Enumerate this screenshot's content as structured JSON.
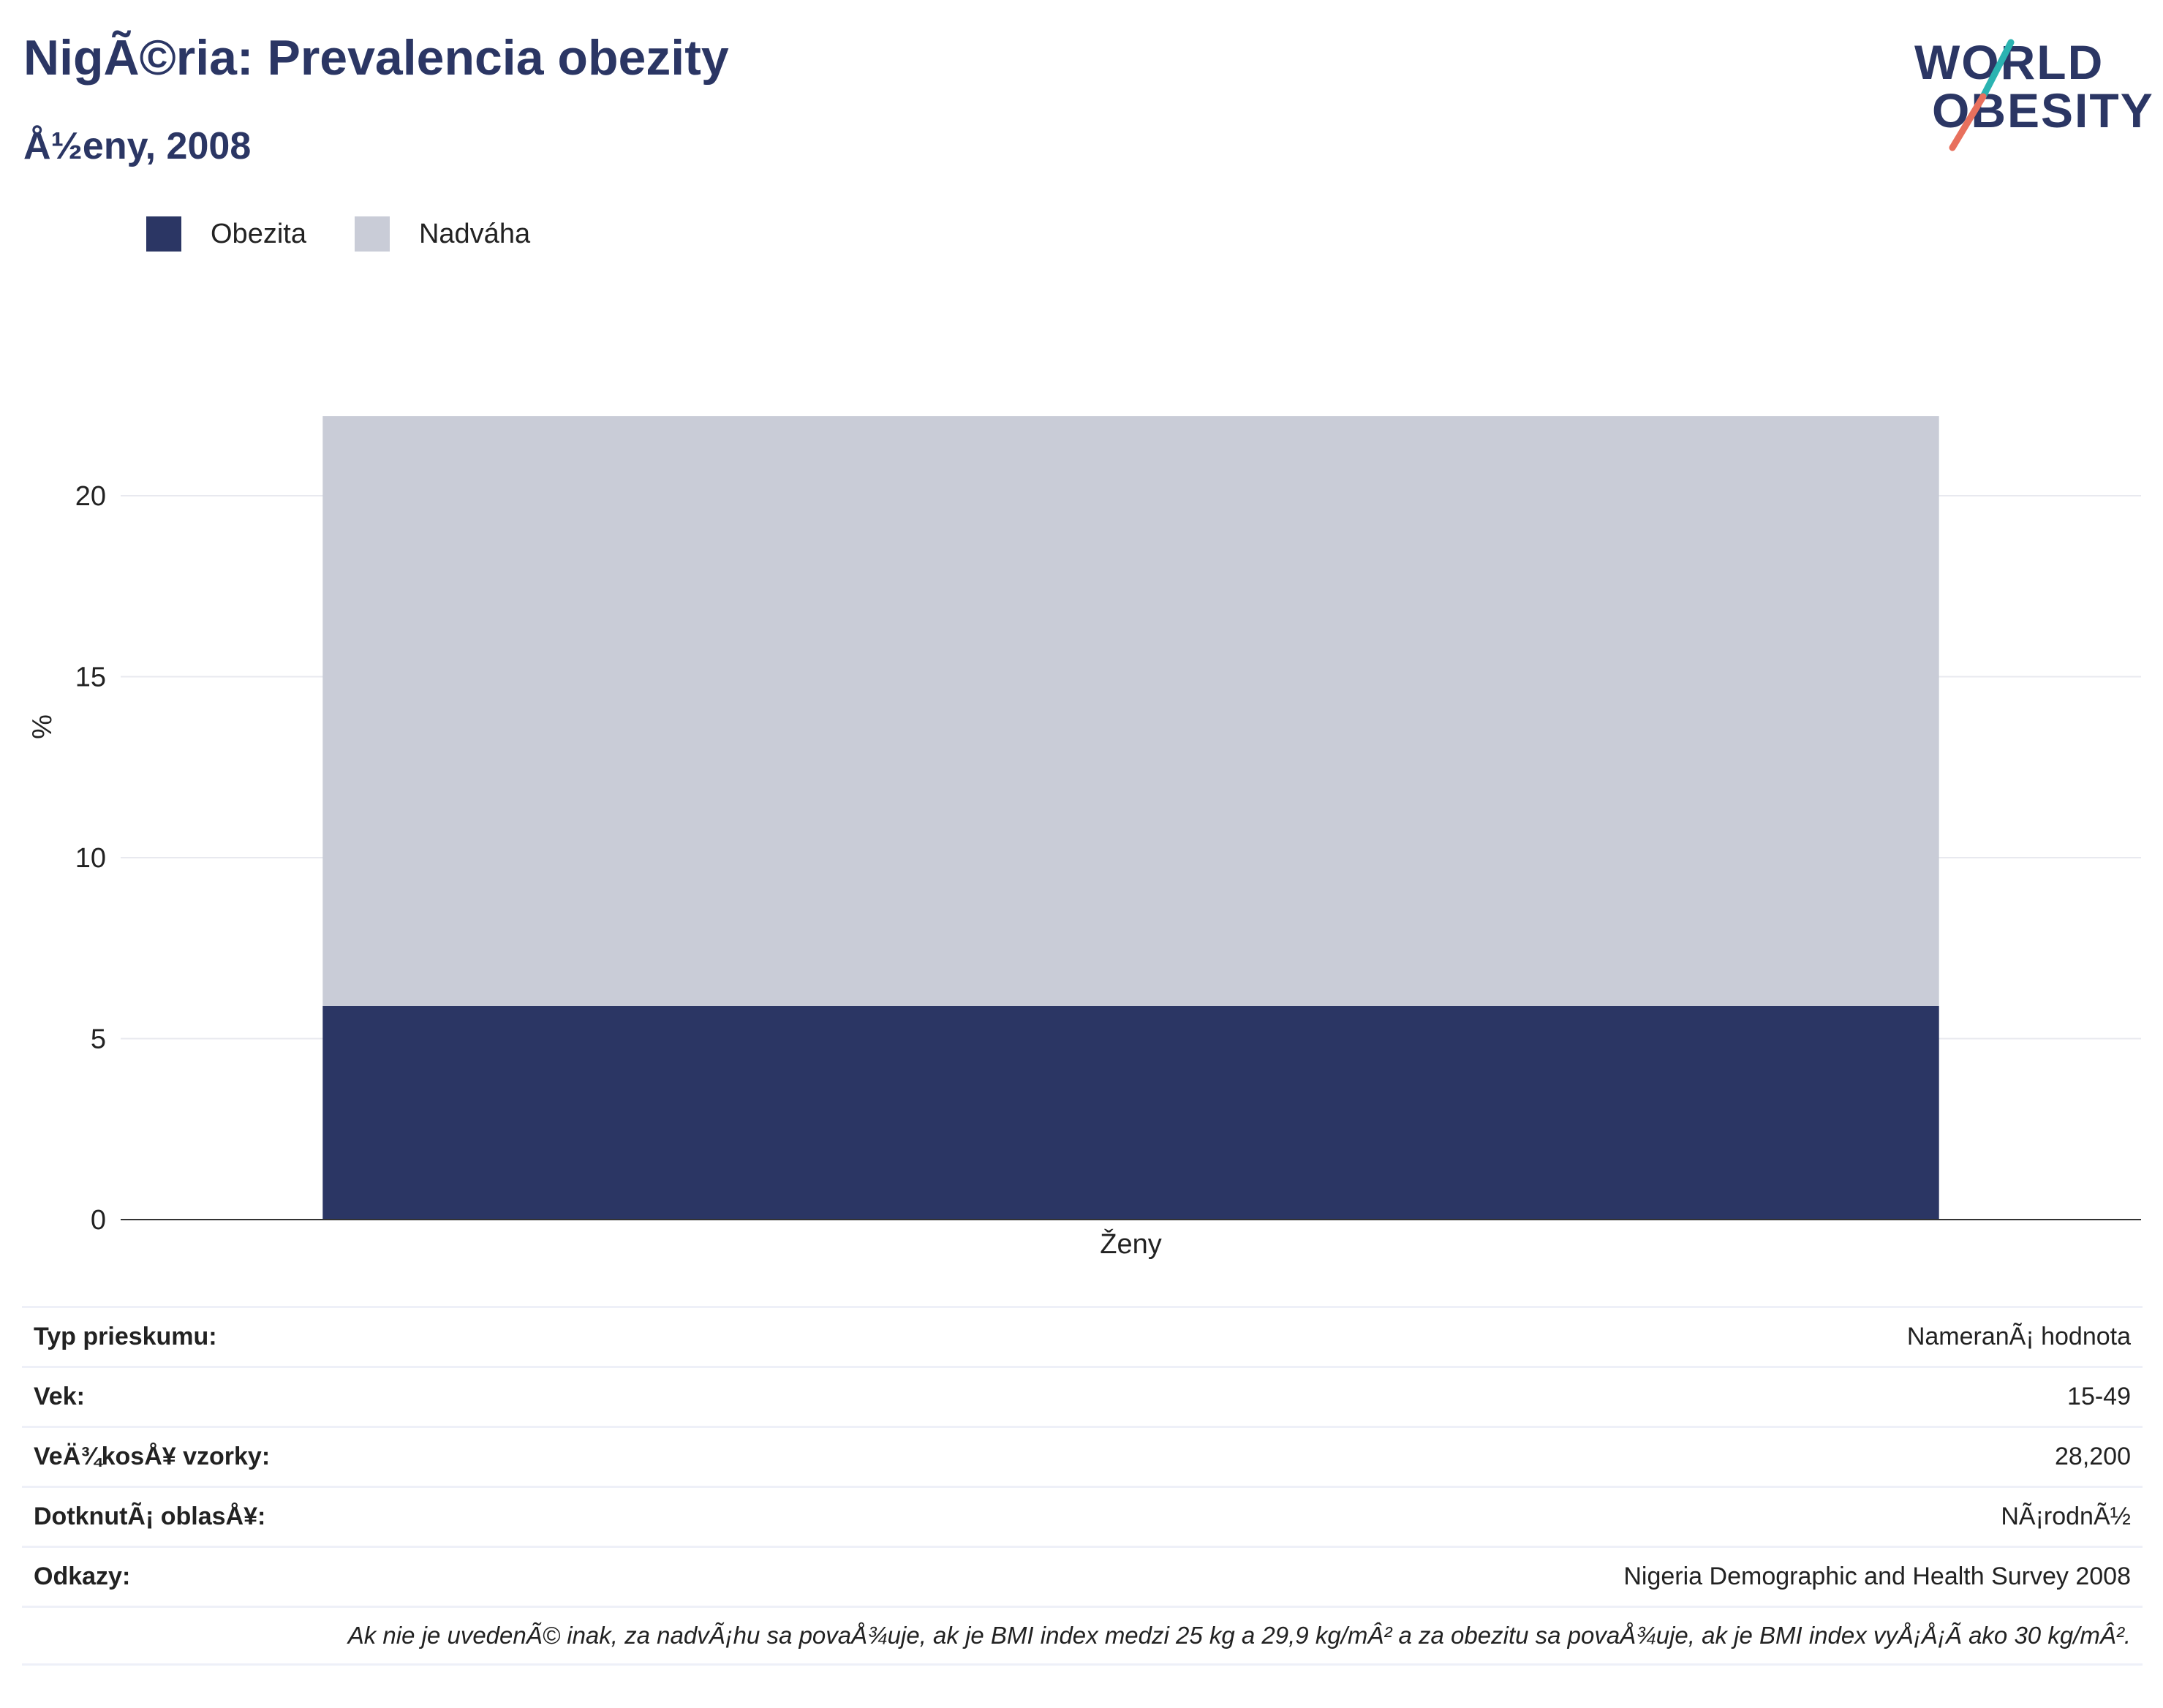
{
  "header": {
    "title": "NigÃ©ria: Prevalencia obezity",
    "subtitle": "Å½eny, 2008"
  },
  "logo": {
    "line1": "WORLD",
    "line2": "OBESITY",
    "slash_colors": [
      "#2bb3b1",
      "#e8705d"
    ]
  },
  "legend": {
    "items": [
      {
        "label": "Obezita",
        "color": "#2b3664"
      },
      {
        "label": "Nadváha",
        "color": "#c9ccd7"
      }
    ]
  },
  "chart_data": {
    "type": "bar",
    "stacked": true,
    "categories": [
      "Ženy"
    ],
    "series": [
      {
        "name": "Obezita",
        "values": [
          5.9
        ],
        "color": "#2b3664"
      },
      {
        "name": "Nadváha",
        "values": [
          16.3
        ],
        "color": "#c9ccd7"
      }
    ],
    "ylabel": "%",
    "ylim": [
      0,
      24
    ],
    "yticks": [
      0,
      5,
      10,
      15,
      20
    ],
    "grid": true,
    "legend_position": "top-left"
  },
  "info": {
    "rows": [
      {
        "key": "Typ prieskumu:",
        "value": "NameranÃ¡ hodnota"
      },
      {
        "key": "Vek:",
        "value": "15-49"
      },
      {
        "key": "VeÄ¾kosÅ¥ vzorky:",
        "value": "28,200"
      },
      {
        "key": "DotknutÃ¡ oblasÅ¥:",
        "value": "NÃ¡rodnÃ½"
      },
      {
        "key": "Odkazy:",
        "value": "Nigeria Demographic and Health Survey 2008"
      }
    ],
    "note": "Ak nie je uvedenÃ© inak, za nadvÃ¡hu sa povaÅ¾uje, ak je BMI index medzi 25 kg a 29,9 kg/mÂ² a za obezitu sa povaÅ¾uje, ak je BMI index vyÅ¡Å¡Ã ako 30 kg/mÂ²."
  }
}
